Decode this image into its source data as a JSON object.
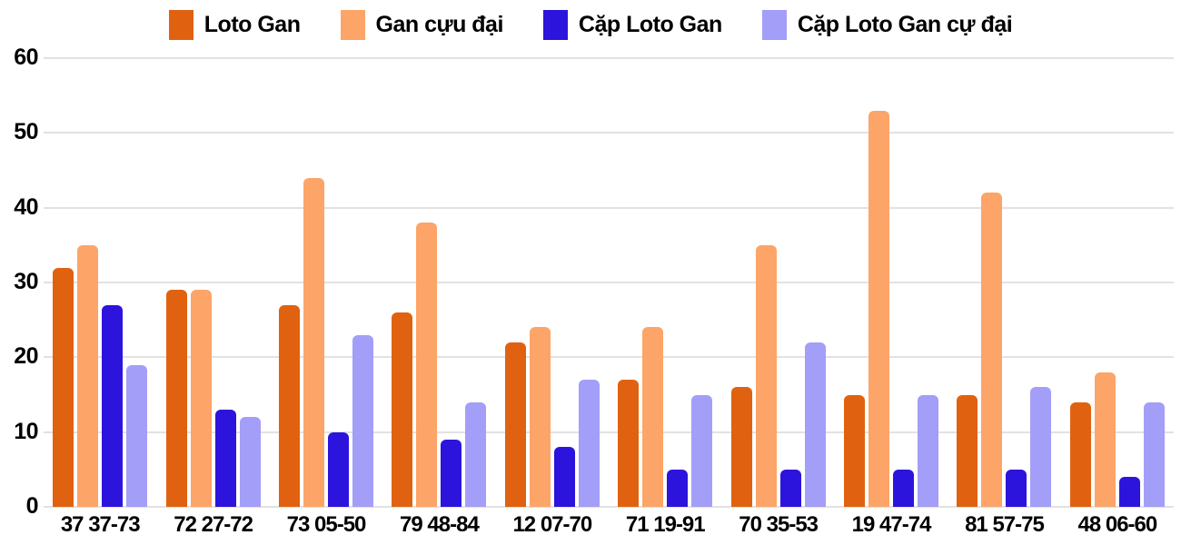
{
  "chart_data": {
    "type": "bar",
    "title": "",
    "xlabel": "",
    "ylabel": "",
    "categories": [
      "37 37-73",
      "72 27-72",
      "73 05-50",
      "79 48-84",
      "12 07-70",
      "71 19-91",
      "70 35-53",
      "19 47-74",
      "81 57-75",
      "48 06-60"
    ],
    "series": [
      {
        "name": "Loto Gan",
        "color": "#e06210",
        "values": [
          32,
          29,
          27,
          26,
          22,
          17,
          16,
          15,
          15,
          14
        ]
      },
      {
        "name": "Gan cựu đại",
        "color": "#fda469",
        "values": [
          35,
          29,
          44,
          38,
          24,
          24,
          35,
          53,
          42,
          18
        ]
      },
      {
        "name": "Cặp Loto Gan",
        "color": "#2c14dd",
        "values": [
          27,
          13,
          10,
          9,
          8,
          5,
          5,
          5,
          5,
          4
        ]
      },
      {
        "name": "Cặp Loto Gan cự đại",
        "color": "#a39ef8",
        "values": [
          19,
          12,
          23,
          14,
          17,
          15,
          22,
          15,
          16,
          14
        ]
      }
    ],
    "ylim": [
      0,
      60
    ],
    "yticks": [
      0,
      10,
      20,
      30,
      40,
      50,
      60
    ],
    "legend_position": "top",
    "grid": true
  },
  "colors": {
    "background": "#ffffff",
    "gridline": "#e2e2e2",
    "text": "#000000"
  }
}
